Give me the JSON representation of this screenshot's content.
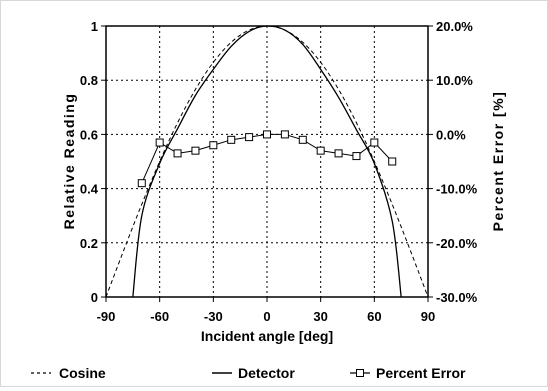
{
  "chart_data": {
    "type": "line",
    "title": "",
    "xlabel": "Incident angle [deg]",
    "ylabel_left": "Relative Reading",
    "ylabel_right": "Percent Error [%]",
    "xlim": [
      -90,
      90
    ],
    "ylim_left": [
      0,
      1
    ],
    "ylim_right": [
      -30,
      20
    ],
    "x_ticks": [
      -90,
      -60,
      -30,
      0,
      30,
      60,
      90
    ],
    "x_tick_labels": [
      "-90",
      "-60",
      "-30",
      "0",
      "30",
      "60",
      "90"
    ],
    "y_left_ticks": [
      0,
      0.2,
      0.4,
      0.6,
      0.8,
      1
    ],
    "y_left_tick_labels": [
      "0",
      "0.2",
      "0.4",
      "0.6",
      "0.8",
      "1"
    ],
    "y_right_ticks": [
      -30,
      -20,
      -10,
      0,
      10,
      20
    ],
    "y_right_tick_labels": [
      "-30.0%",
      "-20.0%",
      "-10.0%",
      "0.0%",
      "10.0%",
      "20.0%"
    ],
    "grid": true,
    "legend_position": "bottom",
    "colors": {
      "line": "#000000",
      "grid": "#000000",
      "frame": "#d7d7d7"
    },
    "series": [
      {
        "name": "Cosine",
        "axis": "left",
        "style": "dashed",
        "x": [
          -90,
          -80,
          -70,
          -60,
          -50,
          -40,
          -30,
          -20,
          -10,
          0,
          10,
          20,
          30,
          40,
          50,
          60,
          70,
          80,
          90
        ],
        "values": [
          0,
          0.174,
          0.342,
          0.5,
          0.643,
          0.766,
          0.866,
          0.94,
          0.985,
          1,
          0.985,
          0.94,
          0.866,
          0.766,
          0.643,
          0.5,
          0.342,
          0.174,
          0
        ]
      },
      {
        "name": "Detector",
        "axis": "left",
        "style": "solid",
        "x": [
          -75,
          -70,
          -60,
          -50,
          -40,
          -30,
          -20,
          -10,
          0,
          10,
          20,
          30,
          40,
          50,
          60,
          70,
          75
        ],
        "values": [
          0,
          0.3,
          0.493,
          0.621,
          0.744,
          0.84,
          0.925,
          0.98,
          1,
          0.985,
          0.932,
          0.84,
          0.737,
          0.617,
          0.493,
          0.28,
          0
        ]
      },
      {
        "name": "Percent Error",
        "axis": "right",
        "style": "solid-square-markers",
        "x": [
          -70,
          -60,
          -50,
          -40,
          -30,
          -20,
          -10,
          0,
          10,
          20,
          30,
          40,
          50,
          60,
          70
        ],
        "values": [
          -9,
          -1.5,
          -3.5,
          -3,
          -2,
          -1,
          -0.5,
          0,
          0,
          -1,
          -3,
          -3.5,
          -4,
          -1.5,
          -5
        ]
      }
    ]
  }
}
